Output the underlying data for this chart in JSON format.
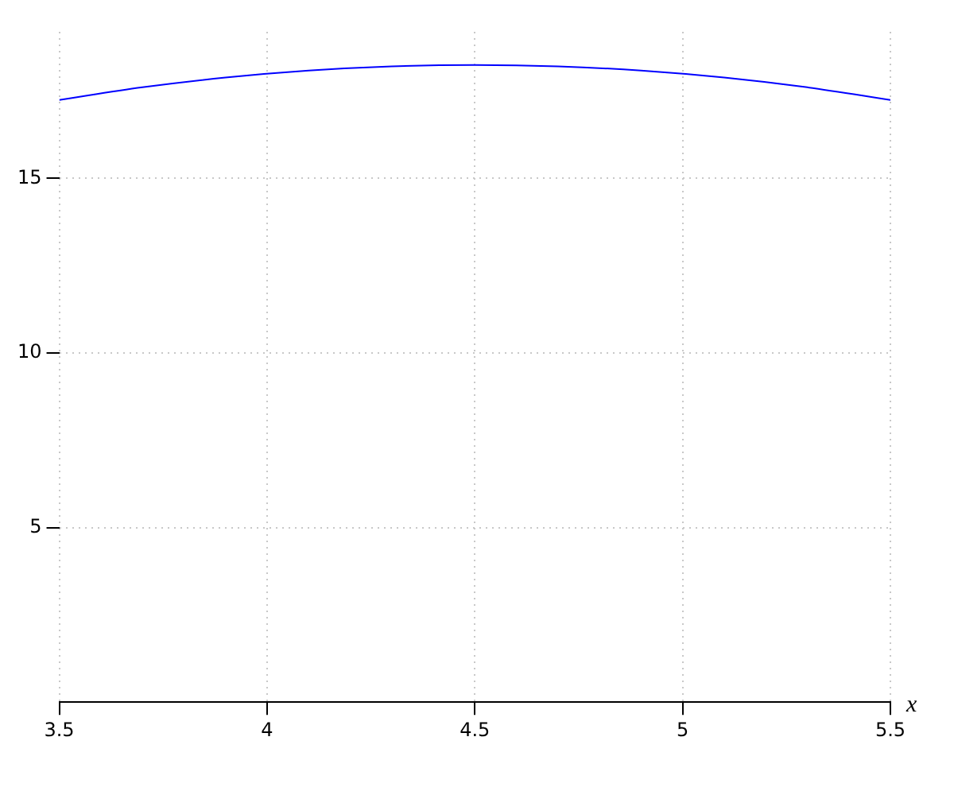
{
  "chart_data": {
    "type": "line",
    "xlabel": "x",
    "x": [
      3.5,
      3.7,
      3.9,
      4.1,
      4.3,
      4.5,
      4.7,
      4.9,
      5.1,
      5.3,
      5.5
    ],
    "series": [
      {
        "color": "#0000ff",
        "values": [
          17.25,
          17.61,
          17.89,
          18.09,
          18.21,
          18.25,
          18.21,
          18.09,
          17.89,
          17.61,
          17.25
        ]
      }
    ],
    "xlim": [
      3.5,
      5.5
    ],
    "xticks": [
      3.5,
      4,
      4.5,
      5,
      5.5
    ],
    "ylim": [
      0,
      19.2
    ],
    "yticks": [
      5,
      10,
      15
    ],
    "grid": true,
    "legend": false,
    "marker": "none",
    "line_style": "solid"
  }
}
